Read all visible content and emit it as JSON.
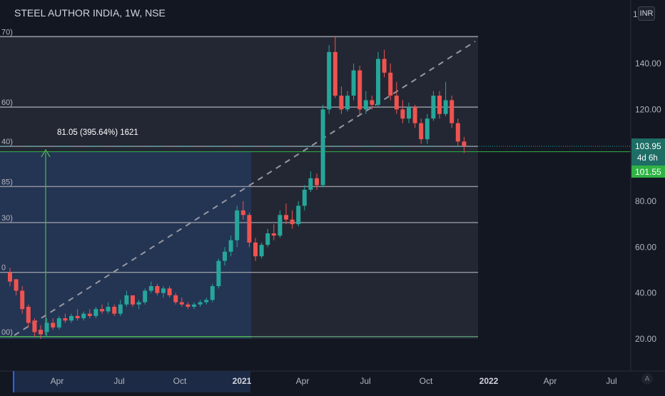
{
  "header": {
    "title": "STEEL AUTHOR INDIA, 1W, NSE",
    "currency": "INR",
    "auto_label": "A"
  },
  "fib_level_labels": [
    "70)",
    "60)",
    "40)",
    "85)",
    "30)",
    "00)"
  ],
  "measure": {
    "label": "81.05 (395.64%) 1621"
  },
  "price_axis": {
    "ticks": [
      "140.00",
      "120.00",
      "80.00",
      "60.00",
      "40.00",
      "20.00"
    ],
    "top_partial": "1",
    "last_price": "103.95",
    "countdown": "4d 6h",
    "ref_price": "101.55"
  },
  "time_axis": {
    "labels": [
      "Apr",
      "Jul",
      "Oct",
      "2021",
      "Apr",
      "Jul",
      "Oct",
      "2022",
      "Apr",
      "Jul"
    ]
  },
  "colors": {
    "background": "#131722",
    "up": "#26a69a",
    "down": "#ef5350",
    "fib_line": "#9598a1",
    "range_fill": "#2a2e39",
    "date_range_fill": "#26406d",
    "price_label_bg": "#1e6e66",
    "ref_label_bg": "#2fb344"
  },
  "chart_data": {
    "type": "candlestick",
    "title": "STEEL AUTHOR INDIA, 1W, NSE",
    "ylim": [
      10,
      170
    ],
    "fib_levels": [
      151.7,
      121,
      103.9,
      86.4,
      70.7,
      49.0,
      21.0
    ],
    "candles": [
      [
        49,
        51,
        43,
        45
      ],
      [
        46,
        46,
        39,
        41
      ],
      [
        41,
        43,
        31,
        33
      ],
      [
        34,
        35,
        25,
        27
      ],
      [
        28,
        29,
        21,
        23
      ],
      [
        24,
        26,
        20,
        22
      ],
      [
        23,
        29,
        21,
        27
      ],
      [
        27,
        29,
        24,
        25
      ],
      [
        25,
        30,
        24,
        29
      ],
      [
        29,
        31,
        27,
        28
      ],
      [
        28,
        31,
        27,
        30
      ],
      [
        30,
        33,
        28,
        29
      ],
      [
        29,
        32,
        28,
        31
      ],
      [
        31,
        33,
        29,
        30
      ],
      [
        30,
        34,
        29,
        33
      ],
      [
        33,
        35,
        31,
        32
      ],
      [
        32,
        36,
        31,
        34
      ],
      [
        34,
        35,
        30,
        31
      ],
      [
        31,
        37,
        30,
        35
      ],
      [
        35,
        41,
        34,
        39
      ],
      [
        39,
        38,
        34,
        35
      ],
      [
        35,
        37,
        33,
        36
      ],
      [
        36,
        42,
        35,
        41
      ],
      [
        41,
        45,
        40,
        43
      ],
      [
        43,
        44,
        39,
        40
      ],
      [
        40,
        43,
        38,
        42
      ],
      [
        42,
        43,
        38,
        39
      ],
      [
        39,
        40,
        35,
        36
      ],
      [
        36,
        38,
        34,
        35
      ],
      [
        35,
        36,
        33,
        34
      ],
      [
        34,
        36,
        33,
        35
      ],
      [
        35,
        37,
        34,
        36
      ],
      [
        36,
        38,
        35,
        37
      ],
      [
        37,
        44,
        36,
        43
      ],
      [
        43,
        55,
        42,
        54
      ],
      [
        54,
        60,
        52,
        58
      ],
      [
        58,
        65,
        56,
        63
      ],
      [
        63,
        78,
        60,
        76
      ],
      [
        76,
        80,
        72,
        74
      ],
      [
        74,
        75,
        60,
        62
      ],
      [
        62,
        64,
        54,
        56
      ],
      [
        56,
        62,
        55,
        61
      ],
      [
        61,
        68,
        60,
        66
      ],
      [
        66,
        70,
        63,
        65
      ],
      [
        65,
        76,
        64,
        74
      ],
      [
        74,
        79,
        70,
        72
      ],
      [
        72,
        76,
        68,
        70
      ],
      [
        70,
        80,
        69,
        78
      ],
      [
        78,
        87,
        76,
        85
      ],
      [
        85,
        93,
        84,
        90
      ],
      [
        90,
        92,
        85,
        87
      ],
      [
        87,
        122,
        86,
        120
      ],
      [
        120,
        148,
        118,
        145
      ],
      [
        145,
        152,
        125,
        126
      ],
      [
        126,
        130,
        118,
        120
      ],
      [
        120,
        128,
        119,
        126
      ],
      [
        126,
        140,
        124,
        137
      ],
      [
        137,
        139,
        118,
        120
      ],
      [
        120,
        128,
        118,
        124
      ],
      [
        124,
        126,
        120,
        122
      ],
      [
        122,
        145,
        121,
        142
      ],
      [
        142,
        146,
        134,
        136
      ],
      [
        136,
        140,
        124,
        126
      ],
      [
        126,
        132,
        118,
        120
      ],
      [
        120,
        124,
        114,
        116
      ],
      [
        116,
        123,
        114,
        121
      ],
      [
        121,
        122,
        112,
        114
      ],
      [
        114,
        116,
        105,
        107
      ],
      [
        107,
        118,
        105,
        116
      ],
      [
        116,
        128,
        115,
        126
      ],
      [
        126,
        128,
        116,
        118
      ],
      [
        118,
        132,
        117,
        124
      ],
      [
        124,
        126,
        112,
        114
      ],
      [
        114,
        116,
        104,
        106
      ],
      [
        106,
        108,
        101,
        103.95
      ]
    ]
  }
}
